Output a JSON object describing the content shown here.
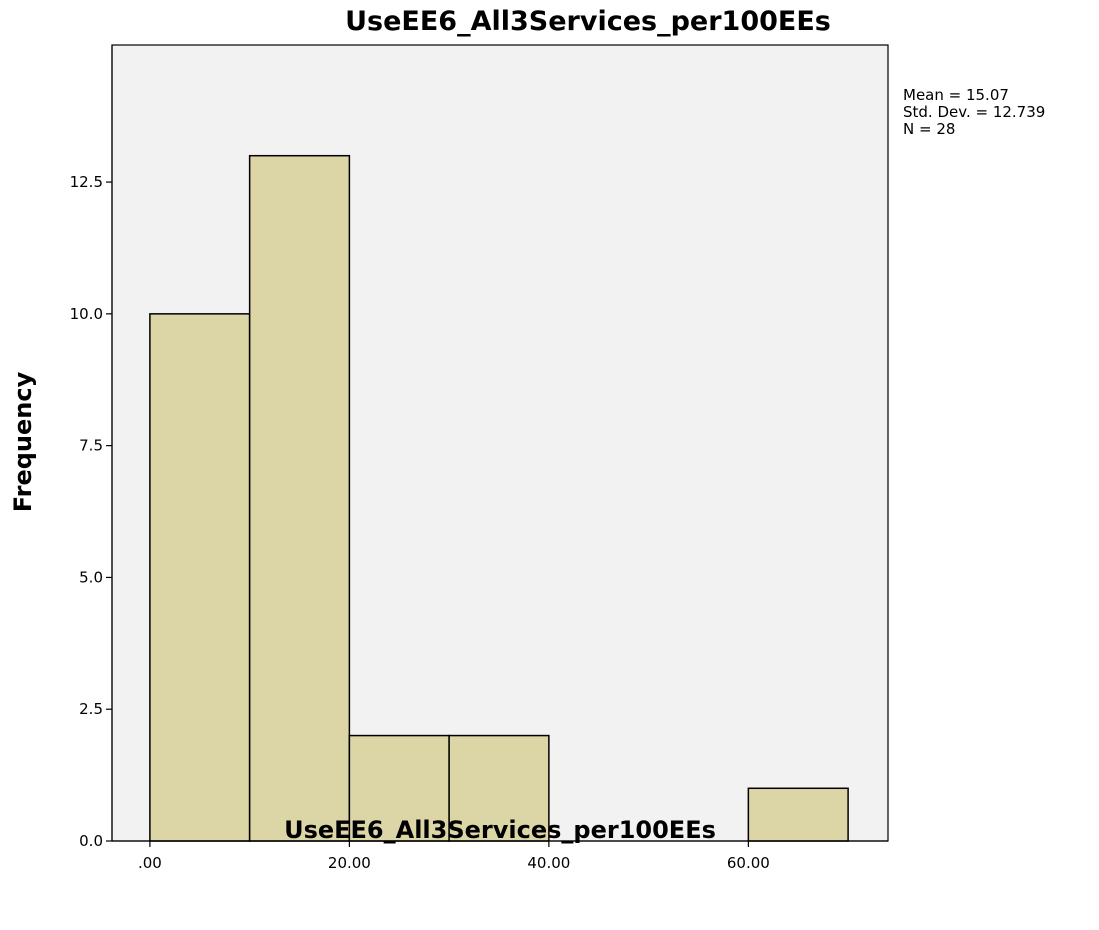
{
  "chart_data": {
    "type": "bar",
    "title": "UseEE6_All3Services_per100EEs",
    "xlabel": "UseEE6_All3Services_per100EEs",
    "ylabel": "Frequency",
    "bins": [
      {
        "start": 0,
        "end": 10,
        "count": 10
      },
      {
        "start": 10,
        "end": 20,
        "count": 13
      },
      {
        "start": 20,
        "end": 30,
        "count": 2
      },
      {
        "start": 30,
        "end": 40,
        "count": 2
      },
      {
        "start": 40,
        "end": 50,
        "count": 0
      },
      {
        "start": 50,
        "end": 60,
        "count": 0
      },
      {
        "start": 60,
        "end": 70,
        "count": 1
      }
    ],
    "xlim": [
      -3.8,
      74
    ],
    "ylim": [
      0,
      15.1
    ],
    "x_ticks": [
      {
        "value": 0,
        "label": ".00"
      },
      {
        "value": 20,
        "label": "20.00"
      },
      {
        "value": 40,
        "label": "40.00"
      },
      {
        "value": 60,
        "label": "60.00"
      }
    ],
    "y_ticks": [
      {
        "value": 0,
        "label": "0.0"
      },
      {
        "value": 2.5,
        "label": "2.5"
      },
      {
        "value": 5,
        "label": "5.0"
      },
      {
        "value": 7.5,
        "label": "7.5"
      },
      {
        "value": 10,
        "label": "10.0"
      },
      {
        "value": 12.5,
        "label": "12.5"
      }
    ],
    "stats": {
      "mean": "Mean = 15.07",
      "std_dev": "Std. Dev. = 12.739",
      "n": "N = 28"
    },
    "grid": false,
    "colors": {
      "bar_fill": "#DCD5A6",
      "bar_stroke": "#000000",
      "plot_background": "#F2F2F2"
    }
  }
}
